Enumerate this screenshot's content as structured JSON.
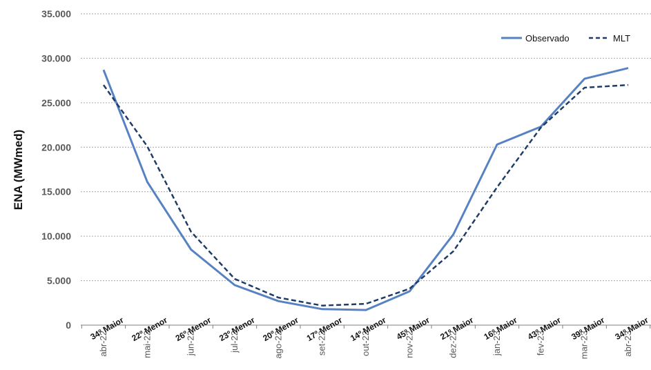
{
  "chart_data": {
    "type": "line",
    "title": "",
    "ylabel": "ENA (MWmed)",
    "xlabel": "",
    "ylim": [
      0,
      35000
    ],
    "yticks": [
      0,
      5000,
      10000,
      15000,
      20000,
      25000,
      30000,
      35000
    ],
    "ytick_labels": [
      "0",
      "5.000",
      "10.000",
      "15.000",
      "20.000",
      "25.000",
      "30.000",
      "35.000"
    ],
    "grid": true,
    "legend_position": "top-right",
    "categories": [
      "abr-22",
      "mai-22",
      "jun-22",
      "jul-22",
      "ago-22",
      "set-22",
      "out-22",
      "nov-22",
      "dez-22",
      "jan-23",
      "fev-23",
      "mar-23",
      "abr-23"
    ],
    "rank_labels": [
      "34º Maior",
      "22º Menor",
      "26º Menor",
      "23º Menor",
      "20º Menor",
      "17º Menor",
      "14º Menor",
      "45º Maior",
      "21º Maior",
      "16º Maior",
      "43º Maior",
      "39º Maior",
      "34º Maior"
    ],
    "series": [
      {
        "name": "Observado",
        "style": "solid",
        "color": "#5782C2",
        "values": [
          28700,
          16100,
          8500,
          4500,
          2700,
          1800,
          1700,
          3800,
          10200,
          20300,
          22300,
          27700,
          28900
        ]
      },
      {
        "name": "MLT",
        "style": "dashed",
        "color": "#1F3C66",
        "values": [
          27000,
          20100,
          10500,
          5200,
          3100,
          2200,
          2400,
          4100,
          8300,
          15500,
          22200,
          26700,
          27000
        ]
      }
    ]
  }
}
